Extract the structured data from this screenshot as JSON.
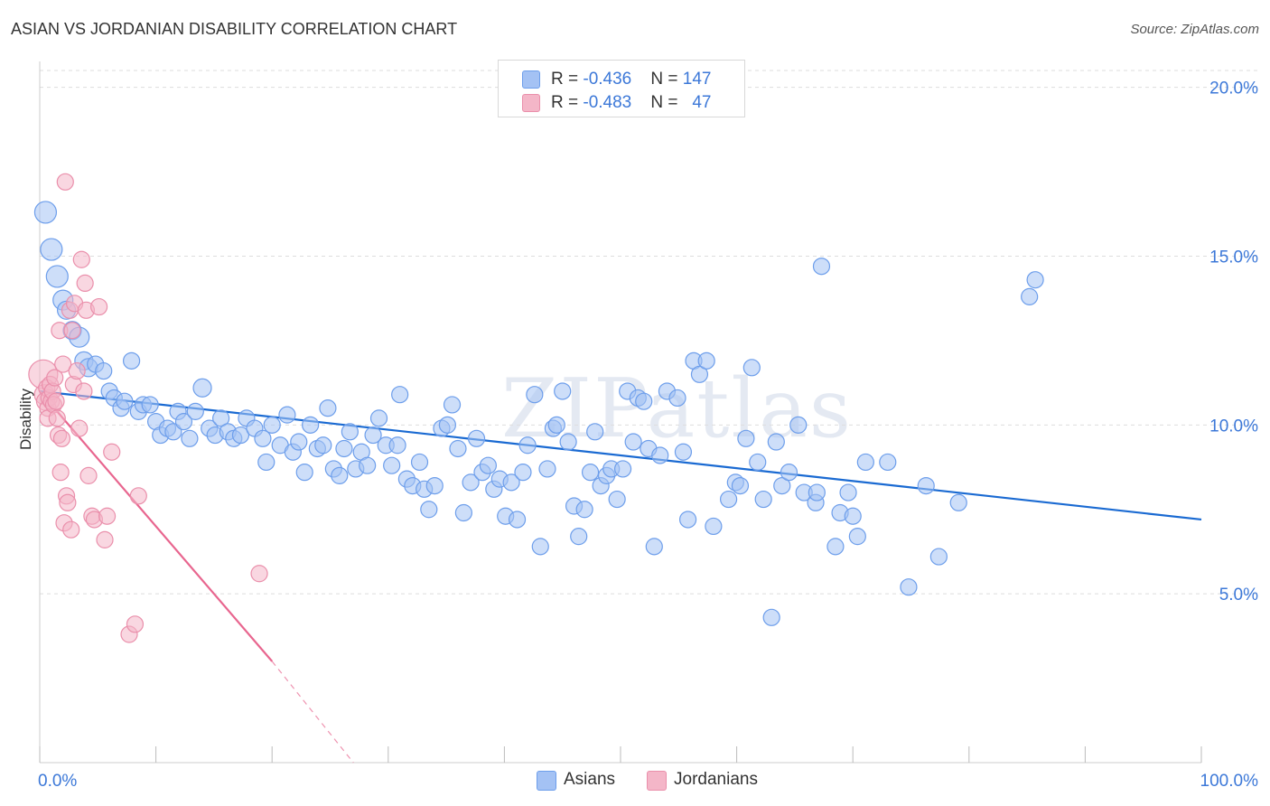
{
  "title": "ASIAN VS JORDANIAN DISABILITY CORRELATION CHART",
  "source": "Source: ZipAtlas.com",
  "watermark": "ZIPatlas",
  "colors": {
    "asian_fill": "#a4c2f4",
    "asian_stroke": "#6d9eeb",
    "asian_line": "#1a6ad2",
    "jordan_fill": "#f4b6c8",
    "jordan_stroke": "#ea8fab",
    "jordan_line": "#e8668f",
    "tick_text": "#3c78d8",
    "grid": "#dddddd"
  },
  "legend": {
    "rows": [
      {
        "r_label": "R = ",
        "r_value": "-0.436",
        "n_label": "N = ",
        "n_value": "147",
        "color": "#a4c2f4",
        "border": "#6d9eeb"
      },
      {
        "r_label": "R = ",
        "r_value": "-0.483",
        "n_label": "N = ",
        "n_value": "47",
        "color": "#f4b6c8",
        "border": "#ea8fab"
      }
    ]
  },
  "bottom_legend": [
    {
      "label": "Asians",
      "color": "#a4c2f4",
      "border": "#6d9eeb"
    },
    {
      "label": "Jordanians",
      "color": "#f4b6c8",
      "border": "#ea8fab"
    }
  ],
  "chart_data": {
    "type": "scatter",
    "title": "ASIAN VS JORDANIAN DISABILITY CORRELATION CHART",
    "xlabel": "",
    "ylabel": "Disability",
    "xlim": [
      0,
      100
    ],
    "ylim": [
      0,
      20.5
    ],
    "x_tick_labels": [
      "0.0%",
      "100.0%"
    ],
    "y_ticks": [
      5,
      10,
      15,
      20
    ],
    "y_tick_labels": [
      "5.0%",
      "10.0%",
      "15.0%",
      "20.0%"
    ],
    "grid": true,
    "legend_position": "top-center",
    "series": [
      {
        "name": "Asians",
        "r": -0.436,
        "n": 147,
        "trend": {
          "x": [
            0,
            100
          ],
          "y": [
            11.0,
            7.2
          ]
        },
        "points": [
          {
            "x": 0.5,
            "y": 16.3,
            "s": 12
          },
          {
            "x": 1.0,
            "y": 15.2,
            "s": 12
          },
          {
            "x": 1.5,
            "y": 14.4,
            "s": 12
          },
          {
            "x": 2.0,
            "y": 13.7,
            "s": 11
          },
          {
            "x": 2.3,
            "y": 13.4,
            "s": 10
          },
          {
            "x": 2.8,
            "y": 12.8,
            "s": 10
          },
          {
            "x": 3.4,
            "y": 12.6,
            "s": 11
          },
          {
            "x": 3.8,
            "y": 11.9,
            "s": 10
          },
          {
            "x": 4.2,
            "y": 11.7,
            "s": 10
          },
          {
            "x": 4.8,
            "y": 11.8,
            "s": 9
          },
          {
            "x": 5.5,
            "y": 11.6,
            "s": 9
          },
          {
            "x": 6.0,
            "y": 11.0,
            "s": 9
          },
          {
            "x": 6.4,
            "y": 10.8,
            "s": 9
          },
          {
            "x": 7.0,
            "y": 10.5,
            "s": 9
          },
          {
            "x": 7.3,
            "y": 10.7,
            "s": 9
          },
          {
            "x": 7.9,
            "y": 11.9,
            "s": 9
          },
          {
            "x": 8.5,
            "y": 10.4,
            "s": 9
          },
          {
            "x": 8.9,
            "y": 10.6,
            "s": 9
          },
          {
            "x": 9.5,
            "y": 10.6,
            "s": 9
          },
          {
            "x": 10.0,
            "y": 10.1,
            "s": 9
          },
          {
            "x": 10.4,
            "y": 9.7,
            "s": 9
          },
          {
            "x": 11.0,
            "y": 9.9,
            "s": 9
          },
          {
            "x": 11.5,
            "y": 9.8,
            "s": 9
          },
          {
            "x": 11.9,
            "y": 10.4,
            "s": 9
          },
          {
            "x": 12.4,
            "y": 10.1,
            "s": 9
          },
          {
            "x": 12.9,
            "y": 9.6,
            "s": 9
          },
          {
            "x": 13.4,
            "y": 10.4,
            "s": 9
          },
          {
            "x": 14.0,
            "y": 11.1,
            "s": 10
          },
          {
            "x": 14.6,
            "y": 9.9,
            "s": 9
          },
          {
            "x": 15.1,
            "y": 9.7,
            "s": 9
          },
          {
            "x": 15.6,
            "y": 10.2,
            "s": 9
          },
          {
            "x": 16.2,
            "y": 9.8,
            "s": 9
          },
          {
            "x": 16.7,
            "y": 9.6,
            "s": 9
          },
          {
            "x": 17.3,
            "y": 9.7,
            "s": 9
          },
          {
            "x": 17.8,
            "y": 10.2,
            "s": 9
          },
          {
            "x": 18.5,
            "y": 9.9,
            "s": 9
          },
          {
            "x": 19.2,
            "y": 9.6,
            "s": 9
          },
          {
            "x": 19.5,
            "y": 8.9,
            "s": 9
          },
          {
            "x": 20.0,
            "y": 10.0,
            "s": 9
          },
          {
            "x": 20.7,
            "y": 9.4,
            "s": 9
          },
          {
            "x": 21.3,
            "y": 10.3,
            "s": 9
          },
          {
            "x": 21.8,
            "y": 9.2,
            "s": 9
          },
          {
            "x": 22.3,
            "y": 9.5,
            "s": 9
          },
          {
            "x": 22.8,
            "y": 8.6,
            "s": 9
          },
          {
            "x": 23.3,
            "y": 10.0,
            "s": 9
          },
          {
            "x": 23.9,
            "y": 9.3,
            "s": 9
          },
          {
            "x": 24.4,
            "y": 9.4,
            "s": 9
          },
          {
            "x": 24.8,
            "y": 10.5,
            "s": 9
          },
          {
            "x": 25.3,
            "y": 8.7,
            "s": 9
          },
          {
            "x": 25.8,
            "y": 8.5,
            "s": 9
          },
          {
            "x": 26.2,
            "y": 9.3,
            "s": 9
          },
          {
            "x": 26.7,
            "y": 9.8,
            "s": 9
          },
          {
            "x": 27.2,
            "y": 8.7,
            "s": 9
          },
          {
            "x": 27.7,
            "y": 9.2,
            "s": 9
          },
          {
            "x": 28.2,
            "y": 8.8,
            "s": 9
          },
          {
            "x": 28.7,
            "y": 9.7,
            "s": 9
          },
          {
            "x": 29.2,
            "y": 10.2,
            "s": 9
          },
          {
            "x": 29.8,
            "y": 9.4,
            "s": 9
          },
          {
            "x": 30.3,
            "y": 8.8,
            "s": 9
          },
          {
            "x": 30.8,
            "y": 9.4,
            "s": 9
          },
          {
            "x": 31.0,
            "y": 10.9,
            "s": 9
          },
          {
            "x": 31.6,
            "y": 8.4,
            "s": 9
          },
          {
            "x": 32.1,
            "y": 8.2,
            "s": 9
          },
          {
            "x": 32.7,
            "y": 8.9,
            "s": 9
          },
          {
            "x": 33.1,
            "y": 8.1,
            "s": 9
          },
          {
            "x": 33.5,
            "y": 7.5,
            "s": 9
          },
          {
            "x": 34.0,
            "y": 8.2,
            "s": 9
          },
          {
            "x": 34.6,
            "y": 9.9,
            "s": 9
          },
          {
            "x": 35.1,
            "y": 10.0,
            "s": 9
          },
          {
            "x": 35.5,
            "y": 10.6,
            "s": 9
          },
          {
            "x": 36.0,
            "y": 9.3,
            "s": 9
          },
          {
            "x": 36.5,
            "y": 7.4,
            "s": 9
          },
          {
            "x": 37.1,
            "y": 8.3,
            "s": 9
          },
          {
            "x": 37.6,
            "y": 9.6,
            "s": 9
          },
          {
            "x": 38.1,
            "y": 8.6,
            "s": 9
          },
          {
            "x": 38.6,
            "y": 8.8,
            "s": 9
          },
          {
            "x": 39.1,
            "y": 8.1,
            "s": 9
          },
          {
            "x": 39.6,
            "y": 8.4,
            "s": 9
          },
          {
            "x": 40.1,
            "y": 7.3,
            "s": 9
          },
          {
            "x": 40.6,
            "y": 8.3,
            "s": 9
          },
          {
            "x": 41.1,
            "y": 7.2,
            "s": 9
          },
          {
            "x": 41.6,
            "y": 8.6,
            "s": 9
          },
          {
            "x": 42.0,
            "y": 9.4,
            "s": 9
          },
          {
            "x": 42.6,
            "y": 10.9,
            "s": 9
          },
          {
            "x": 43.1,
            "y": 6.4,
            "s": 9
          },
          {
            "x": 43.7,
            "y": 8.7,
            "s": 9
          },
          {
            "x": 44.2,
            "y": 9.9,
            "s": 9
          },
          {
            "x": 44.5,
            "y": 10.0,
            "s": 9
          },
          {
            "x": 45.0,
            "y": 11.0,
            "s": 9
          },
          {
            "x": 45.5,
            "y": 9.5,
            "s": 9
          },
          {
            "x": 46.0,
            "y": 7.6,
            "s": 9
          },
          {
            "x": 46.4,
            "y": 6.7,
            "s": 9
          },
          {
            "x": 46.9,
            "y": 7.5,
            "s": 9
          },
          {
            "x": 47.4,
            "y": 8.6,
            "s": 9
          },
          {
            "x": 47.8,
            "y": 9.8,
            "s": 9
          },
          {
            "x": 48.3,
            "y": 8.2,
            "s": 9
          },
          {
            "x": 48.8,
            "y": 8.5,
            "s": 9
          },
          {
            "x": 49.2,
            "y": 8.7,
            "s": 9
          },
          {
            "x": 49.7,
            "y": 7.8,
            "s": 9
          },
          {
            "x": 50.2,
            "y": 8.7,
            "s": 9
          },
          {
            "x": 50.6,
            "y": 11.0,
            "s": 9
          },
          {
            "x": 51.1,
            "y": 9.5,
            "s": 9
          },
          {
            "x": 51.5,
            "y": 10.8,
            "s": 9
          },
          {
            "x": 52.0,
            "y": 10.7,
            "s": 9
          },
          {
            "x": 52.4,
            "y": 9.3,
            "s": 9
          },
          {
            "x": 52.9,
            "y": 6.4,
            "s": 9
          },
          {
            "x": 53.4,
            "y": 9.1,
            "s": 9
          },
          {
            "x": 54.0,
            "y": 11.0,
            "s": 9
          },
          {
            "x": 54.9,
            "y": 10.8,
            "s": 9
          },
          {
            "x": 55.4,
            "y": 9.2,
            "s": 9
          },
          {
            "x": 55.8,
            "y": 7.2,
            "s": 9
          },
          {
            "x": 56.3,
            "y": 11.9,
            "s": 9
          },
          {
            "x": 56.8,
            "y": 11.5,
            "s": 9
          },
          {
            "x": 57.4,
            "y": 11.9,
            "s": 9
          },
          {
            "x": 58.0,
            "y": 7.0,
            "s": 9
          },
          {
            "x": 59.3,
            "y": 7.8,
            "s": 9
          },
          {
            "x": 59.9,
            "y": 8.3,
            "s": 9
          },
          {
            "x": 60.3,
            "y": 8.2,
            "s": 9
          },
          {
            "x": 60.8,
            "y": 9.6,
            "s": 9
          },
          {
            "x": 61.3,
            "y": 11.7,
            "s": 9
          },
          {
            "x": 61.8,
            "y": 8.9,
            "s": 9
          },
          {
            "x": 62.3,
            "y": 7.8,
            "s": 9
          },
          {
            "x": 63.0,
            "y": 4.3,
            "s": 9
          },
          {
            "x": 63.4,
            "y": 9.5,
            "s": 9
          },
          {
            "x": 63.9,
            "y": 8.2,
            "s": 9
          },
          {
            "x": 64.5,
            "y": 8.6,
            "s": 9
          },
          {
            "x": 65.3,
            "y": 10.0,
            "s": 9
          },
          {
            "x": 65.8,
            "y": 8.0,
            "s": 9
          },
          {
            "x": 66.8,
            "y": 7.7,
            "s": 9
          },
          {
            "x": 66.9,
            "y": 8.0,
            "s": 9
          },
          {
            "x": 67.3,
            "y": 14.7,
            "s": 9
          },
          {
            "x": 68.5,
            "y": 6.4,
            "s": 9
          },
          {
            "x": 68.9,
            "y": 7.4,
            "s": 9
          },
          {
            "x": 69.6,
            "y": 8.0,
            "s": 9
          },
          {
            "x": 70.0,
            "y": 7.3,
            "s": 9
          },
          {
            "x": 70.4,
            "y": 6.7,
            "s": 9
          },
          {
            "x": 71.1,
            "y": 8.9,
            "s": 9
          },
          {
            "x": 73.0,
            "y": 8.9,
            "s": 9
          },
          {
            "x": 74.8,
            "y": 5.2,
            "s": 9
          },
          {
            "x": 76.3,
            "y": 8.2,
            "s": 9
          },
          {
            "x": 77.4,
            "y": 6.1,
            "s": 9
          },
          {
            "x": 79.1,
            "y": 7.7,
            "s": 9
          },
          {
            "x": 85.2,
            "y": 13.8,
            "s": 9
          },
          {
            "x": 85.7,
            "y": 14.3,
            "s": 9
          }
        ]
      },
      {
        "name": "Jordanians",
        "r": -0.483,
        "n": 47,
        "trend": {
          "x": [
            0,
            20
          ],
          "y": [
            11.0,
            3.0
          ]
        },
        "trend_extension": {
          "x": [
            20,
            27
          ],
          "y": [
            3.0,
            0.0
          ]
        },
        "points": [
          {
            "x": 0.3,
            "y": 11.5,
            "s": 16
          },
          {
            "x": 0.4,
            "y": 10.9,
            "s": 11
          },
          {
            "x": 0.5,
            "y": 10.7,
            "s": 10
          },
          {
            "x": 0.6,
            "y": 11.1,
            "s": 9
          },
          {
            "x": 0.7,
            "y": 10.5,
            "s": 9
          },
          {
            "x": 0.7,
            "y": 10.2,
            "s": 9
          },
          {
            "x": 0.8,
            "y": 10.8,
            "s": 9
          },
          {
            "x": 0.9,
            "y": 11.2,
            "s": 9
          },
          {
            "x": 1.0,
            "y": 10.7,
            "s": 9
          },
          {
            "x": 1.1,
            "y": 11.0,
            "s": 9
          },
          {
            "x": 1.2,
            "y": 10.6,
            "s": 9
          },
          {
            "x": 1.3,
            "y": 11.4,
            "s": 9
          },
          {
            "x": 1.4,
            "y": 10.7,
            "s": 9
          },
          {
            "x": 1.5,
            "y": 10.2,
            "s": 9
          },
          {
            "x": 1.6,
            "y": 9.7,
            "s": 9
          },
          {
            "x": 1.7,
            "y": 12.8,
            "s": 9
          },
          {
            "x": 1.8,
            "y": 8.6,
            "s": 9
          },
          {
            "x": 1.9,
            "y": 9.6,
            "s": 9
          },
          {
            "x": 2.0,
            "y": 11.8,
            "s": 9
          },
          {
            "x": 2.1,
            "y": 7.1,
            "s": 9
          },
          {
            "x": 2.2,
            "y": 17.2,
            "s": 9
          },
          {
            "x": 2.3,
            "y": 7.9,
            "s": 9
          },
          {
            "x": 2.4,
            "y": 7.7,
            "s": 9
          },
          {
            "x": 2.6,
            "y": 13.4,
            "s": 9
          },
          {
            "x": 2.7,
            "y": 6.9,
            "s": 9
          },
          {
            "x": 2.8,
            "y": 12.8,
            "s": 9
          },
          {
            "x": 2.9,
            "y": 11.2,
            "s": 9
          },
          {
            "x": 3.0,
            "y": 13.6,
            "s": 9
          },
          {
            "x": 3.2,
            "y": 11.6,
            "s": 9
          },
          {
            "x": 3.4,
            "y": 9.9,
            "s": 9
          },
          {
            "x": 3.6,
            "y": 14.9,
            "s": 9
          },
          {
            "x": 3.8,
            "y": 11.0,
            "s": 9
          },
          {
            "x": 3.9,
            "y": 14.2,
            "s": 9
          },
          {
            "x": 4.0,
            "y": 13.4,
            "s": 9
          },
          {
            "x": 4.2,
            "y": 8.5,
            "s": 9
          },
          {
            "x": 4.5,
            "y": 7.3,
            "s": 9
          },
          {
            "x": 4.7,
            "y": 7.2,
            "s": 9
          },
          {
            "x": 5.1,
            "y": 13.5,
            "s": 9
          },
          {
            "x": 5.6,
            "y": 6.6,
            "s": 9
          },
          {
            "x": 5.8,
            "y": 7.3,
            "s": 9
          },
          {
            "x": 6.2,
            "y": 9.2,
            "s": 9
          },
          {
            "x": 8.5,
            "y": 7.9,
            "s": 9
          },
          {
            "x": 7.7,
            "y": 3.8,
            "s": 9
          },
          {
            "x": 8.2,
            "y": 4.1,
            "s": 9
          },
          {
            "x": 18.9,
            "y": 5.6,
            "s": 9
          }
        ]
      }
    ]
  }
}
